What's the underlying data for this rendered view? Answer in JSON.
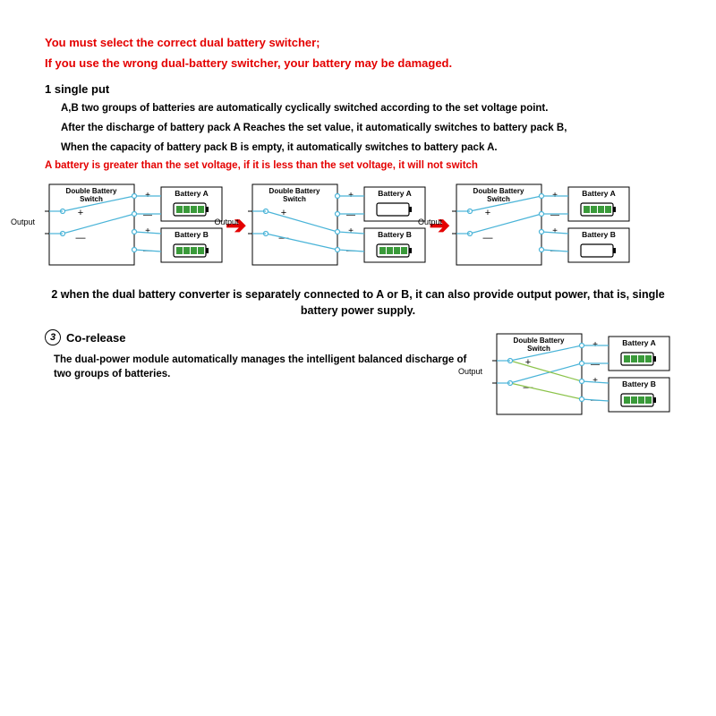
{
  "warnings": {
    "line1": "You must select the correct dual battery switcher;",
    "line2": "If you use the wrong dual-battery switcher, your battery may be damaged."
  },
  "section1": {
    "title": "1 single put",
    "desc1": "A,B two groups of batteries are automatically cyclically switched according to the set voltage point.",
    "desc2": "After the discharge of battery pack A Reaches the set value, it automatically switches to battery pack B,",
    "desc3": "When the capacity of battery pack B is empty, it automatically switches to battery pack A.",
    "note": "A battery is greater than the set voltage, if it is less than the set voltage, it will not switch"
  },
  "section2": {
    "text": "2 when the dual battery converter is separately connected to A or B, it can also provide output power, that is, single battery power supply."
  },
  "section3": {
    "num": "3",
    "title": "Co-release",
    "desc": "The dual-power module automatically manages the intelligent balanced discharge of two groups of batteries."
  },
  "labels": {
    "switchTitle": "Double  Battery",
    "switchSub": "Switch",
    "batteryA": "Battery A",
    "batteryB": "Battery B",
    "output": "Output",
    "plus": "+",
    "minus": "—"
  },
  "diagrams": {
    "d1": {
      "connectTo": "A",
      "batteryA_level": 4,
      "batteryB_level": 4
    },
    "d2": {
      "connectTo": "B",
      "batteryA_level": 0,
      "batteryB_level": 4
    },
    "d3": {
      "connectTo": "A",
      "batteryA_level": 4,
      "batteryB_level": 0
    },
    "d4": {
      "connectTo": "both",
      "batteryA_level": 4,
      "batteryB_level": 4
    }
  },
  "colors": {
    "warning": "#e40000",
    "wire": "#4ab4d8",
    "wireGreen": "#8bc34a",
    "node": "#4ab4d8",
    "batteryFull": "#3a9a3a",
    "box": "#000000"
  }
}
